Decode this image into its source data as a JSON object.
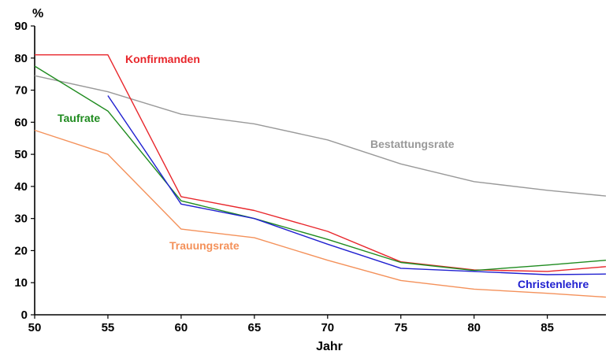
{
  "chart_data": {
    "type": "line",
    "title": "",
    "xlabel": "Jahr",
    "ylabel": "%",
    "xlim": [
      50,
      89
    ],
    "ylim": [
      0,
      90
    ],
    "xticks": [
      50,
      55,
      60,
      65,
      70,
      75,
      80,
      85
    ],
    "yticks": [
      0,
      10,
      20,
      30,
      40,
      50,
      60,
      70,
      80,
      90
    ],
    "grid": false,
    "legend": "inline labels",
    "series": [
      {
        "name": "Bestattungsrate",
        "color": "#999999",
        "points": [
          [
            50,
            74.5
          ],
          [
            55,
            69.5
          ],
          [
            60,
            62.5
          ],
          [
            65,
            59.5
          ],
          [
            70,
            54.5
          ],
          [
            75,
            47
          ],
          [
            80,
            41.5
          ],
          [
            85,
            38.8
          ],
          [
            89,
            37
          ]
        ]
      },
      {
        "name": "Konfirmanden",
        "color": "#e8262b",
        "points": [
          [
            50,
            81
          ],
          [
            55,
            81
          ],
          [
            60,
            36.8
          ],
          [
            65,
            32.5
          ],
          [
            70,
            26
          ],
          [
            75,
            16.5
          ],
          [
            80,
            14
          ],
          [
            85,
            13.5
          ],
          [
            89,
            15
          ]
        ]
      },
      {
        "name": "Taufrate",
        "color": "#1f8b1f",
        "points": [
          [
            50,
            77.5
          ],
          [
            55,
            63.5
          ],
          [
            60,
            35.5
          ],
          [
            65,
            30
          ],
          [
            70,
            23.5
          ],
          [
            75,
            16.3
          ],
          [
            80,
            13.8
          ],
          [
            85,
            15.5
          ],
          [
            89,
            17
          ]
        ]
      },
      {
        "name": "Christenlehre",
        "color": "#2020d0",
        "points": [
          [
            55,
            68.3
          ],
          [
            60,
            34.5
          ],
          [
            65,
            30
          ],
          [
            70,
            22
          ],
          [
            75,
            14.5
          ],
          [
            80,
            13.5
          ],
          [
            85,
            12.5
          ],
          [
            89,
            12.7
          ]
        ]
      },
      {
        "name": "Trauungsrate",
        "color": "#f4915a",
        "points": [
          [
            50,
            57.5
          ],
          [
            55,
            50
          ],
          [
            60,
            26.7
          ],
          [
            65,
            24
          ],
          [
            70,
            17
          ],
          [
            75,
            10.7
          ],
          [
            80,
            8
          ],
          [
            85,
            6.7
          ],
          [
            89,
            5.5
          ]
        ]
      }
    ]
  }
}
